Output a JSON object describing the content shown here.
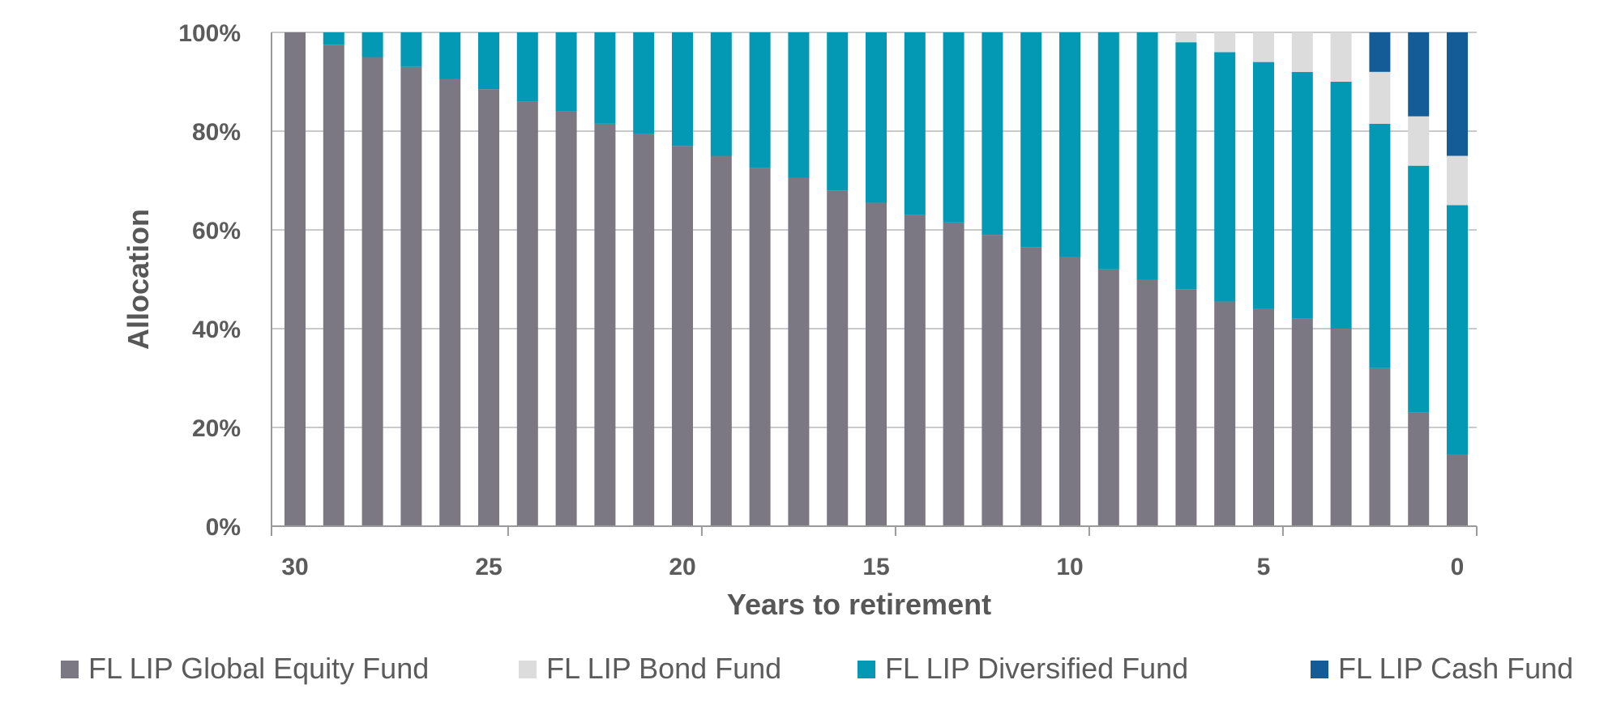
{
  "chart_data": {
    "type": "bar",
    "stacked": true,
    "title": "",
    "xlabel": "Years to retirement",
    "ylabel": "Allocation",
    "ylim": [
      0,
      100
    ],
    "y_ticks": [
      "0%",
      "20%",
      "40%",
      "60%",
      "80%",
      "100%"
    ],
    "x_ticks": [
      "30",
      "25",
      "20",
      "15",
      "10",
      "5",
      "0"
    ],
    "grid": true,
    "legend_position": "bottom",
    "categories": [
      30,
      29,
      28,
      27,
      26,
      25,
      24,
      23,
      22,
      21,
      20,
      19,
      18,
      17,
      16,
      15,
      14,
      13,
      12,
      11,
      10,
      9,
      8,
      7,
      6,
      5,
      4,
      3,
      2,
      1,
      0
    ],
    "series": [
      {
        "name": "FL LIP Global Equity Fund",
        "color": "#7b7883",
        "legend_text_color": "#5b5b5b",
        "values": [
          100,
          97.5,
          95,
          93,
          90.5,
          88.5,
          86,
          84,
          81.5,
          79.5,
          77,
          75,
          72.5,
          70.5,
          68,
          65.5,
          63,
          61.5,
          59,
          56.5,
          54.5,
          52,
          50,
          48,
          45.5,
          44,
          42,
          40,
          32,
          23,
          14.5
        ]
      },
      {
        "name": "FL LIP Diversified Fund",
        "color": "#0399b4",
        "legend_text_color": "#5b5b5b",
        "values": [
          0,
          2.5,
          5,
          7,
          9.5,
          11.5,
          14,
          16,
          18.5,
          20.5,
          23,
          25,
          27.5,
          29.5,
          32,
          34.5,
          37,
          38.5,
          41,
          43.5,
          45.5,
          48,
          50,
          50,
          50.5,
          50,
          50,
          50,
          49.5,
          50,
          50.5
        ]
      },
      {
        "name": "FL LIP Bond Fund",
        "color": "#dcdcdc",
        "legend_text_color": "#5b5b5b",
        "values": [
          0,
          0,
          0,
          0,
          0,
          0,
          0,
          0,
          0,
          0,
          0,
          0,
          0,
          0,
          0,
          0,
          0,
          0,
          0,
          0,
          0,
          0,
          0,
          2,
          4,
          6,
          8,
          10,
          10.5,
          10,
          10
        ]
      },
      {
        "name": "FL LIP Cash Fund",
        "color": "#135c97",
        "legend_text_color": "#135c97",
        "values": [
          0,
          0,
          0,
          0,
          0,
          0,
          0,
          0,
          0,
          0,
          0,
          0,
          0,
          0,
          0,
          0,
          0,
          0,
          0,
          0,
          0,
          0,
          0,
          0,
          0,
          0,
          0,
          0,
          8,
          17,
          25
        ]
      }
    ],
    "legend_order": [
      "FL LIP Global Equity Fund",
      "FL LIP Bond Fund",
      "FL LIP Diversified Fund",
      "FL LIP Cash Fund"
    ]
  },
  "colors": {
    "gridline": "#b8b8b8",
    "axis": "#9a9a9a",
    "tick_text": "#5b5b5b",
    "axis_title": "#575757"
  }
}
